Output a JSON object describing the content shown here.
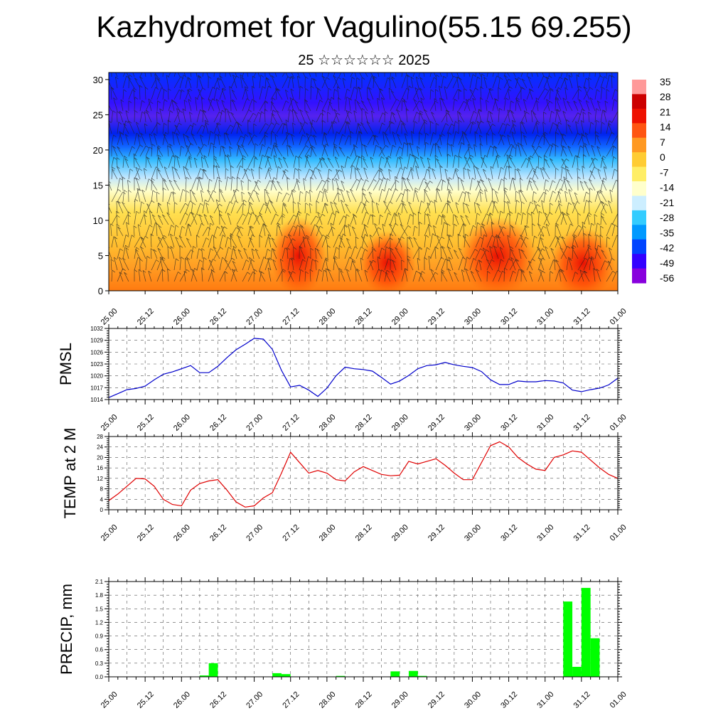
{
  "header": {
    "title": "Kazhydromet for Vagulino(55.15 69.255)",
    "subtitle": "25 ☆☆☆☆☆☆ 2025"
  },
  "colors": {
    "pmsl_line": "#0000cc",
    "temp_line": "#e00000",
    "precip_bar": "#00ff00",
    "scale": [
      "#8800dd",
      "#3300ff",
      "#0044ff",
      "#0099ff",
      "#33ccff",
      "#cceeff",
      "#ffffcc",
      "#ffee66",
      "#ffcc33",
      "#ff9922",
      "#ff5511",
      "#ee1100",
      "#cc0000",
      "#ff9999"
    ]
  },
  "chart_data": [
    {
      "type": "heatmap",
      "name": "vertical-section",
      "yticks": [
        0,
        5,
        10,
        15,
        20,
        25,
        30
      ],
      "ylim": [
        0,
        31
      ],
      "xticks": [
        "25.00",
        "25.12",
        "26.00",
        "26.12",
        "27.00",
        "27.12",
        "28.00",
        "28.12",
        "29.00",
        "29.12",
        "30.00",
        "30.12",
        "31.00",
        "31.12",
        "01.00"
      ],
      "colorbar_labels": [
        "35",
        "28",
        "21",
        "14",
        "7",
        "0",
        "-7",
        "-14",
        "-21",
        "-28",
        "-35",
        "-42",
        "-49",
        "-56"
      ]
    },
    {
      "type": "line",
      "name": "pmsl",
      "ylabel": "PMSL",
      "ylim": [
        1014,
        1032
      ],
      "yticks": [
        1014,
        1017,
        1020,
        1023,
        1026,
        1029,
        1032
      ],
      "xticks": [
        "25.00",
        "25.12",
        "26.00",
        "26.12",
        "27.00",
        "27.12",
        "28.00",
        "28.12",
        "29.00",
        "29.12",
        "30.00",
        "30.12",
        "31.00",
        "31.12",
        "01.00"
      ],
      "xlim": [
        0,
        56
      ],
      "x": [
        0,
        1,
        2,
        3,
        4,
        5,
        6,
        7,
        8,
        9,
        10,
        11,
        12,
        13,
        14,
        15,
        16,
        17,
        18,
        19,
        20,
        21,
        22,
        23,
        24,
        25,
        26,
        27,
        28,
        29,
        30,
        31,
        32,
        33,
        34,
        35,
        36,
        37,
        38,
        39,
        40,
        41,
        42,
        43,
        44,
        45,
        46,
        47,
        48,
        49,
        50,
        51,
        52,
        53,
        54,
        55,
        56
      ],
      "values": [
        1014.5,
        1015.5,
        1016.5,
        1016.8,
        1017.4,
        1019.0,
        1020.4,
        1021.0,
        1021.8,
        1022.6,
        1020.8,
        1020.8,
        1022.4,
        1024.6,
        1026.6,
        1028.0,
        1029.5,
        1029.3,
        1026.7,
        1021.4,
        1017.2,
        1017.6,
        1016.4,
        1014.8,
        1016.9,
        1020.0,
        1022.2,
        1021.8,
        1021.6,
        1021.2,
        1019.6,
        1017.9,
        1018.7,
        1020.1,
        1021.8,
        1022.6,
        1022.8,
        1023.4,
        1022.8,
        1022.4,
        1022.1,
        1021.1,
        1019.0,
        1017.8,
        1017.8,
        1018.7,
        1018.5,
        1018.5,
        1018.8,
        1018.7,
        1018.2,
        1016.4,
        1016.0,
        1016.5,
        1016.9,
        1017.7,
        1019.4
      ]
    },
    {
      "type": "line",
      "name": "temp",
      "ylabel": "TEMP at 2 M",
      "ylim": [
        0,
        28
      ],
      "yticks": [
        0,
        4,
        8,
        12,
        16,
        20,
        24,
        28
      ],
      "xticks": [
        "25.00",
        "25.12",
        "26.00",
        "26.12",
        "27.00",
        "27.12",
        "28.00",
        "28.12",
        "29.00",
        "29.12",
        "30.00",
        "30.12",
        "31.00",
        "31.12",
        "01.00"
      ],
      "xlim": [
        0,
        56
      ],
      "x": [
        0,
        1,
        2,
        3,
        4,
        5,
        6,
        7,
        8,
        9,
        10,
        11,
        12,
        13,
        14,
        15,
        16,
        17,
        18,
        19,
        20,
        21,
        22,
        23,
        24,
        25,
        26,
        27,
        28,
        29,
        30,
        31,
        32,
        33,
        34,
        35,
        36,
        37,
        38,
        39,
        40,
        41,
        42,
        43,
        44,
        45,
        46,
        47,
        48,
        49,
        50,
        51,
        52,
        53,
        54,
        55,
        56
      ],
      "values": [
        3.5,
        6.0,
        9.0,
        12.0,
        11.8,
        9.0,
        4.0,
        2.0,
        1.5,
        7.5,
        10.0,
        11.0,
        11.5,
        7.5,
        3.0,
        1.0,
        1.5,
        4.5,
        6.5,
        14.0,
        22.0,
        18.0,
        14.0,
        15.0,
        14.0,
        11.5,
        11.0,
        14.5,
        16.5,
        15.0,
        13.5,
        13.0,
        13.2,
        18.5,
        17.5,
        18.5,
        19.5,
        17.0,
        14.0,
        11.5,
        11.5,
        18.0,
        24.5,
        26.0,
        24.0,
        20.0,
        17.5,
        15.5,
        15.0,
        20.0,
        21.0,
        22.5,
        22.0,
        19.0,
        16.0,
        13.5,
        12.0
      ]
    },
    {
      "type": "bar",
      "name": "precip",
      "ylabel": "PRECIP, mm",
      "ylim": [
        0,
        2.1
      ],
      "yticks": [
        0.0,
        0.3,
        0.6,
        0.9,
        1.2,
        1.5,
        1.8,
        2.1
      ],
      "xticks": [
        "25.00",
        "25.12",
        "26.00",
        "26.12",
        "27.00",
        "27.12",
        "28.00",
        "28.12",
        "29.00",
        "29.12",
        "30.00",
        "30.12",
        "31.00",
        "31.12",
        "01.00"
      ],
      "xlim": [
        0,
        56
      ],
      "x": [
        10,
        11,
        18,
        19,
        25,
        31,
        33,
        34,
        50,
        51,
        52,
        53
      ],
      "values": [
        0.03,
        0.3,
        0.08,
        0.06,
        0.02,
        0.12,
        0.13,
        0.02,
        1.66,
        0.22,
        1.96,
        0.85
      ]
    }
  ]
}
